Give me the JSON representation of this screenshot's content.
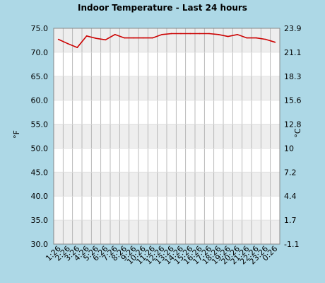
{
  "chart_data": {
    "type": "line",
    "title": "Indoor Temperature - Last 24 hours",
    "ylabel_left": "°F",
    "ylabel_right": "°C",
    "ylim": [
      30,
      75
    ],
    "y_ticks_left": [
      "30.0",
      "35.0",
      "40.0",
      "45.0",
      "50.0",
      "55.0",
      "60.0",
      "65.0",
      "70.0",
      "75.0"
    ],
    "y_ticks_right": [
      "-1.1",
      "1.7",
      "4.4",
      "7.2",
      "10",
      "12.8",
      "15.6",
      "18.3",
      "21.1",
      "23.9"
    ],
    "x_ticks": [
      "1:26",
      "2:26",
      "3:26",
      "4:26",
      "5:26",
      "6:26",
      "7:26",
      "8:26",
      "9:26",
      "10:26",
      "11:26",
      "12:26",
      "13:26",
      "14:26",
      "15:26",
      "16:26",
      "17:26",
      "18:26",
      "19:26",
      "20:26",
      "21:26",
      "22:26",
      "23:26",
      "0:26"
    ],
    "series": [
      {
        "values": [
          72.7,
          71.8,
          71.0,
          73.4,
          72.9,
          72.6,
          73.7,
          73.0,
          73.0,
          73.0,
          73.0,
          73.7,
          73.9,
          73.9,
          73.9,
          73.9,
          73.9,
          73.7,
          73.3,
          73.7,
          73.0,
          73.0,
          72.7,
          72.1
        ],
        "color": "#cc0000"
      }
    ],
    "grid": true,
    "band_color": "#eeeeee",
    "plot_background": "#ffffff"
  }
}
